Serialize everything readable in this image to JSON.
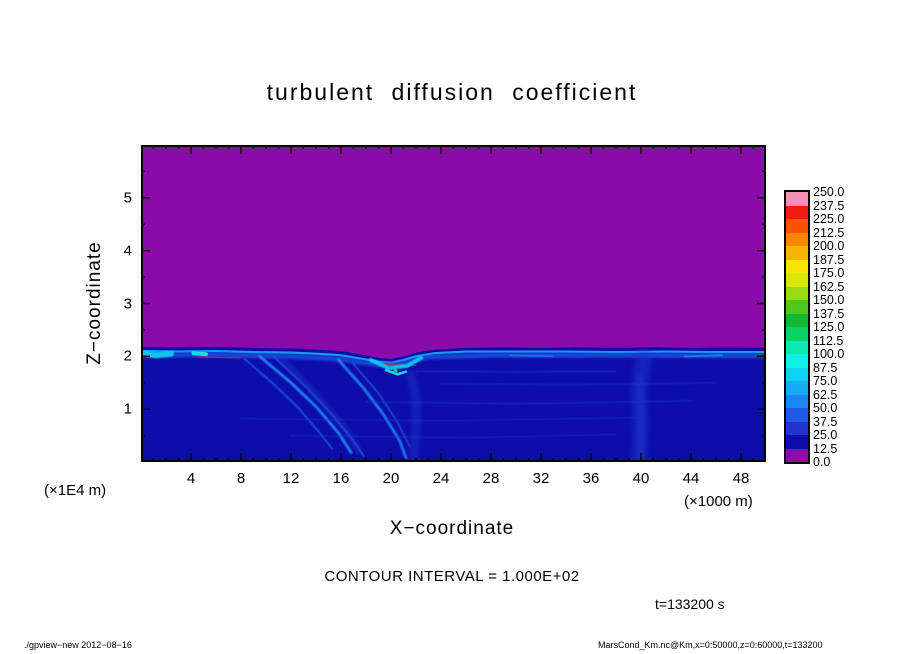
{
  "title": "turbulent diffusion coefficient",
  "axes": {
    "x_label": "X−coordinate",
    "y_label": "Z−coordinate",
    "x_unit": "(×1000 m)",
    "y_unit": "(×1E4 m)"
  },
  "annotations": {
    "contour_interval": "CONTOUR INTERVAL = 1.000E+02",
    "time": "t=133200 s"
  },
  "footer": {
    "left": "./gpview−new  2012−08−16",
    "right": "MarsCond_Km.nc@Km,x=0:50000,z=0:60000,t=133200"
  },
  "chart_data": {
    "type": "heatmap",
    "title": "turbulent diffusion coefficient",
    "xlabel": "X-coordinate",
    "ylabel": "Z-coordinate",
    "x_unit_factor": "×1000 m",
    "y_unit_factor": "×1E4 m",
    "x_range": [
      0,
      50
    ],
    "y_range": [
      0,
      6
    ],
    "x_ticks": [
      4,
      8,
      12,
      16,
      20,
      24,
      28,
      32,
      36,
      40,
      44,
      48
    ],
    "y_ticks": [
      1,
      2,
      3,
      4,
      5
    ],
    "contour_interval": 100.0,
    "time_seconds": 133200,
    "levels": [
      0.0,
      12.5,
      25.0,
      37.5,
      50.0,
      62.5,
      75.0,
      87.5,
      100.0,
      112.5,
      125.0,
      137.5,
      150.0,
      162.5,
      175.0,
      187.5,
      200.0,
      212.5,
      225.0,
      237.5,
      250.0
    ],
    "colorbar_labels": [
      "250.0",
      "237.5",
      "225.0",
      "212.5",
      "200.0",
      "187.5",
      "175.0",
      "162.5",
      "150.0",
      "137.5",
      "125.0",
      "112.5",
      "100.0",
      "87.5",
      "75.0",
      "62.5",
      "50.0",
      "37.5",
      "25.0",
      "12.5",
      "0.0"
    ],
    "palette": [
      "#8a0ca8",
      "#0d0da8",
      "#1f35cc",
      "#1e5ae8",
      "#1e86f0",
      "#17acf4",
      "#0fd2f2",
      "#0ff0e8",
      "#0ce8ac",
      "#0cd060",
      "#12b832",
      "#4cc81e",
      "#96dc12",
      "#d8e80a",
      "#f8e400",
      "#f8b400",
      "#f88600",
      "#f85200",
      "#ee1c10",
      "#f490b4"
    ],
    "field": {
      "description": "Filled contour field: uniform lowest band (0-12.5, purple) above z≈2.15×1E4 m; below the interface a dark-blue boundary layer (mostly 12.5-37.5) with bright cyan turbulent streaks (~50-100) along the interface, diagonal plume bundles descending near x=9-22, a cyan swirl with a small green maximum near x≈20.4 z≈1.7, thin red filaments (~230) at the interface near x≈5-8 and x≈20, and a diffuse lighter updraft column near x≈40.",
      "upper_value": 6,
      "lower_value": 18,
      "interface": [
        [
          0,
          2.18
        ],
        [
          3,
          2.17
        ],
        [
          6,
          2.18
        ],
        [
          9,
          2.16
        ],
        [
          12,
          2.15
        ],
        [
          14,
          2.13
        ],
        [
          16,
          2.1
        ],
        [
          17.5,
          2.04
        ],
        [
          19,
          1.97
        ],
        [
          20,
          1.95
        ],
        [
          21,
          2.0
        ],
        [
          22,
          2.07
        ],
        [
          23.5,
          2.13
        ],
        [
          26,
          2.16
        ],
        [
          29,
          2.17
        ],
        [
          32,
          2.16
        ],
        [
          35,
          2.17
        ],
        [
          38,
          2.16
        ],
        [
          41,
          2.17
        ],
        [
          44,
          2.16
        ],
        [
          47,
          2.17
        ],
        [
          50,
          2.16
        ]
      ],
      "streaks": [
        {
          "name": "interface-bright-line",
          "p": [
            [
              0,
              2.1
            ],
            [
              3,
              2.09
            ],
            [
              6,
              2.1
            ],
            [
              9,
              2.08
            ],
            [
              12,
              2.07
            ],
            [
              14,
              2.05
            ],
            [
              16,
              2.02
            ],
            [
              17.5,
              1.96
            ],
            [
              19,
              1.9
            ],
            [
              20,
              1.88
            ],
            [
              21,
              1.93
            ],
            [
              22,
              2.0
            ],
            [
              23.5,
              2.06
            ],
            [
              26,
              2.09
            ],
            [
              30,
              2.09
            ],
            [
              34,
              2.09
            ],
            [
              38,
              2.08
            ],
            [
              42,
              2.09
            ],
            [
              46,
              2.08
            ],
            [
              50,
              2.08
            ]
          ],
          "w": 2.2,
          "v": 70,
          "a": 0.95,
          "blur": 0
        },
        {
          "name": "interface-underband",
          "p": [
            [
              0,
              2.02
            ],
            [
              6,
              2.03
            ],
            [
              12,
              2.0
            ],
            [
              16,
              1.95
            ],
            [
              19,
              1.84
            ],
            [
              21,
              1.87
            ],
            [
              23,
              1.99
            ],
            [
              28,
              2.02
            ],
            [
              34,
              2.02
            ],
            [
              40,
              2.02
            ],
            [
              46,
              2.01
            ],
            [
              50,
              2.01
            ]
          ],
          "w": 5,
          "v": 42,
          "a": 0.75,
          "blur": 2
        },
        {
          "name": "left-edge-patch",
          "p": [
            [
              0,
              2.06
            ],
            [
              1.2,
              2.02
            ],
            [
              2.4,
              2.05
            ]
          ],
          "w": 6,
          "v": 80,
          "a": 0.9,
          "blur": 1
        },
        {
          "name": "left-bright-spot",
          "p": [
            [
              4.2,
              2.06
            ],
            [
              5.2,
              2.04
            ]
          ],
          "w": 4,
          "v": 88,
          "a": 0.9,
          "blur": 0.5
        },
        {
          "name": "red-filament-left",
          "p": [
            [
              4.5,
              1.99
            ],
            [
              8,
              1.97
            ]
          ],
          "w": 1.2,
          "v": 230,
          "a": 0.8,
          "blur": 0
        },
        {
          "name": "red-filament-center",
          "p": [
            [
              19.3,
              1.84
            ],
            [
              22,
              1.83
            ]
          ],
          "w": 1.2,
          "v": 230,
          "a": 0.8,
          "blur": 0
        },
        {
          "name": "diagonal-plume-a1",
          "p": [
            [
              9.5,
              2.0
            ],
            [
              12,
              1.5
            ],
            [
              14,
              1.05
            ],
            [
              15.8,
              0.55
            ],
            [
              16.8,
              0.18
            ]
          ],
          "w": 3,
          "v": 55,
          "a": 0.9,
          "blur": 1
        },
        {
          "name": "diagonal-plume-a2",
          "p": [
            [
              10.6,
              2.0
            ],
            [
              13.2,
              1.42
            ],
            [
              15.2,
              0.92
            ],
            [
              17,
              0.4
            ],
            [
              17.8,
              0.12
            ]
          ],
          "w": 2,
          "v": 48,
          "a": 0.85,
          "blur": 1
        },
        {
          "name": "diagonal-plume-a3",
          "p": [
            [
              8.3,
              1.95
            ],
            [
              10.6,
              1.48
            ],
            [
              12.6,
              1.02
            ],
            [
              14.3,
              0.55
            ],
            [
              15.3,
              0.25
            ]
          ],
          "w": 2,
          "v": 44,
          "a": 0.8,
          "blur": 1
        },
        {
          "name": "diagonal-plume-a-halo",
          "p": [
            [
              11.3,
              1.95
            ],
            [
              14,
              1.28
            ],
            [
              16.4,
              0.6
            ],
            [
              17.4,
              0.22
            ]
          ],
          "w": 6,
          "v": 34,
          "a": 0.5,
          "blur": 3
        },
        {
          "name": "diagonal-plume-b1",
          "p": [
            [
              15.8,
              1.93
            ],
            [
              17.8,
              1.4
            ],
            [
              19.4,
              0.9
            ],
            [
              20.7,
              0.4
            ],
            [
              21.2,
              0.08
            ]
          ],
          "w": 3,
          "v": 50,
          "a": 0.85,
          "blur": 1
        },
        {
          "name": "diagonal-plume-b2",
          "p": [
            [
              16.9,
              1.88
            ],
            [
              18.9,
              1.33
            ],
            [
              20.4,
              0.8
            ],
            [
              21.5,
              0.3
            ]
          ],
          "w": 2,
          "v": 44,
          "a": 0.7,
          "blur": 1
        },
        {
          "name": "center-swirl",
          "p": [
            [
              18.4,
              1.93
            ],
            [
              19.8,
              1.78
            ],
            [
              21.3,
              1.82
            ],
            [
              22.4,
              1.97
            ]
          ],
          "w": 4,
          "v": 76,
          "a": 0.9,
          "blur": 1
        },
        {
          "name": "center-swirl-inner",
          "p": [
            [
              19.6,
              1.74
            ],
            [
              20.5,
              1.66
            ],
            [
              21.2,
              1.71
            ]
          ],
          "w": 2.5,
          "v": 88,
          "a": 0.9,
          "blur": 0
        },
        {
          "name": "center-downflow",
          "p": [
            [
              21.6,
              1.65
            ],
            [
              22,
              1.2
            ],
            [
              22,
              0.6
            ],
            [
              21.8,
              0.1
            ]
          ],
          "w": 9,
          "v": 32,
          "a": 0.5,
          "blur": 4
        },
        {
          "name": "right-column-outer",
          "p": [
            [
              39.8,
              0.05
            ],
            [
              40,
              0.7
            ],
            [
              39.8,
              1.3
            ],
            [
              40.2,
              1.95
            ]
          ],
          "w": 16,
          "v": 30,
          "a": 0.5,
          "blur": 6
        },
        {
          "name": "right-column-inner",
          "p": [
            [
              40,
              0.1
            ],
            [
              40,
              1.0
            ],
            [
              39.9,
              1.6
            ]
          ],
          "w": 7,
          "v": 36,
          "a": 0.5,
          "blur": 3
        },
        {
          "name": "striation-1",
          "p": [
            [
              22,
              1.72
            ],
            [
              30,
              1.7
            ],
            [
              38,
              1.72
            ]
          ],
          "w": 2,
          "v": 30,
          "a": 0.5,
          "blur": 1
        },
        {
          "name": "striation-2",
          "p": [
            [
              24,
              1.48
            ],
            [
              34,
              1.46
            ],
            [
              46,
              1.5
            ]
          ],
          "w": 2,
          "v": 30,
          "a": 0.45,
          "blur": 1
        },
        {
          "name": "striation-3",
          "p": [
            [
              18,
              1.14
            ],
            [
              30,
              1.1
            ],
            [
              44,
              1.16
            ]
          ],
          "w": 2,
          "v": 30,
          "a": 0.45,
          "blur": 1
        },
        {
          "name": "striation-4",
          "p": [
            [
              8,
              0.82
            ],
            [
              24,
              0.78
            ],
            [
              40,
              0.84
            ]
          ],
          "w": 2,
          "v": 30,
          "a": 0.4,
          "blur": 1
        },
        {
          "name": "striation-5",
          "p": [
            [
              12,
              0.5
            ],
            [
              26,
              0.46
            ],
            [
              38,
              0.52
            ]
          ],
          "w": 2,
          "v": 30,
          "a": 0.4,
          "blur": 1
        },
        {
          "name": "right-interface-cyan",
          "p": [
            [
              43.5,
              2.0
            ],
            [
              46.5,
              2.02
            ]
          ],
          "w": 2,
          "v": 60,
          "a": 0.8,
          "blur": 0
        },
        {
          "name": "mid-interface-cyan",
          "p": [
            [
              29.5,
              2.02
            ],
            [
              33,
              2.0
            ]
          ],
          "w": 1.6,
          "v": 55,
          "a": 0.7,
          "blur": 0
        }
      ],
      "spots": [
        {
          "name": "green-maximum",
          "x": 20.35,
          "z": 1.72,
          "r": 2.2,
          "v": 118,
          "a": 1
        }
      ]
    }
  }
}
